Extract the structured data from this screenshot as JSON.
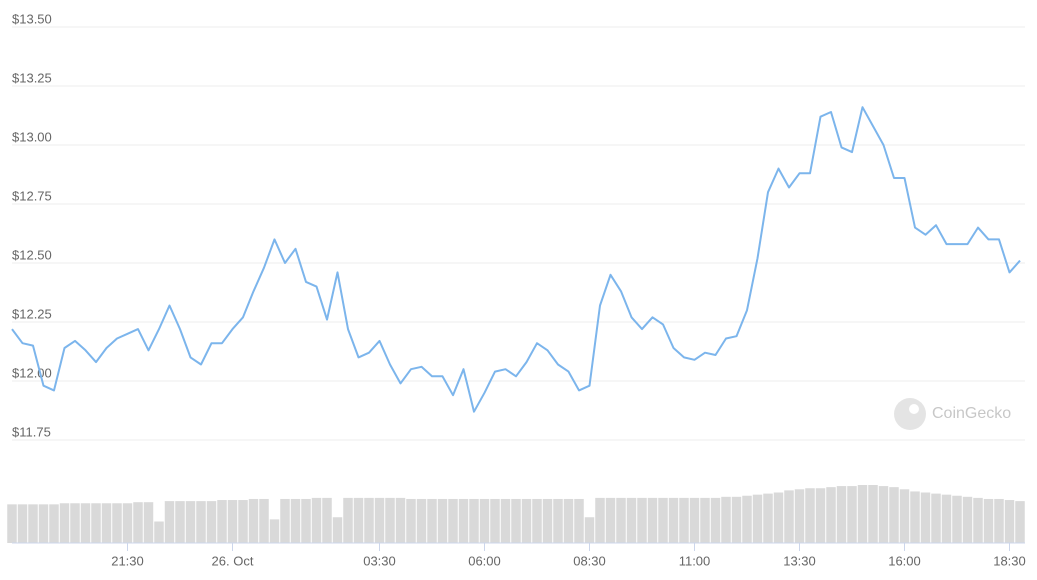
{
  "chart_data": {
    "type": "line",
    "color": "#7cb5ec",
    "volume_color": "#d9d9d9",
    "grid": true,
    "watermark": "CoinGecko",
    "x": [
      -5.25,
      -5,
      -4.75,
      -4.5,
      -4.25,
      -4,
      -3.75,
      -3.5,
      -3.25,
      -3,
      -2.75,
      -2.5,
      -2.25,
      -2,
      -1.75,
      -1.5,
      -1.25,
      -1,
      -0.75,
      -0.5,
      -0.25,
      0,
      0.25,
      0.5,
      0.75,
      1,
      1.25,
      1.5,
      1.75,
      2,
      2.25,
      2.5,
      2.75,
      3,
      3.25,
      3.5,
      3.75,
      4,
      4.25,
      4.5,
      4.75,
      5,
      5.25,
      5.5,
      5.75,
      6,
      6.25,
      6.5,
      6.75,
      7,
      7.25,
      7.5,
      7.75,
      8,
      8.25,
      8.5,
      8.75,
      9,
      9.25,
      9.5,
      9.75,
      10,
      10.25,
      10.5,
      10.75,
      11,
      11.25,
      11.5,
      11.75,
      12,
      12.25,
      12.5,
      12.75,
      13,
      13.25,
      13.5,
      13.75,
      14,
      14.25,
      14.5,
      14.75,
      15,
      15.25,
      15.5,
      15.75,
      16,
      16.25,
      16.5,
      16.75,
      17,
      17.25,
      17.5,
      17.75,
      18,
      18.25,
      18.5,
      18.75
    ],
    "values": [
      12.22,
      12.16,
      12.15,
      11.98,
      11.96,
      12.14,
      12.17,
      12.13,
      12.08,
      12.14,
      12.18,
      12.2,
      12.22,
      12.13,
      12.22,
      12.32,
      12.22,
      12.1,
      12.07,
      12.16,
      12.16,
      12.22,
      12.27,
      12.38,
      12.48,
      12.6,
      12.5,
      12.56,
      12.42,
      12.4,
      12.26,
      12.46,
      12.22,
      12.1,
      12.12,
      12.17,
      12.07,
      11.99,
      12.05,
      12.06,
      12.02,
      12.02,
      11.94,
      12.05,
      11.87,
      11.95,
      12.04,
      12.05,
      12.02,
      12.08,
      12.16,
      12.13,
      12.07,
      12.04,
      11.96,
      11.98,
      12.32,
      12.45,
      12.38,
      12.27,
      12.22,
      12.27,
      12.24,
      12.14,
      12.1,
      12.09,
      12.12,
      12.11,
      12.18,
      12.19,
      12.3,
      12.52,
      12.8,
      12.9,
      12.82,
      12.88,
      12.88,
      13.12,
      13.14,
      12.99,
      12.97,
      13.16,
      13.08,
      13.0,
      12.86,
      12.86,
      12.65,
      12.62,
      12.66,
      12.58,
      12.58,
      12.58,
      12.65,
      12.6,
      12.6,
      12.46,
      12.51
    ],
    "volume": [
      36,
      36,
      36,
      36,
      36,
      37,
      37,
      37,
      37,
      37,
      37,
      37,
      38,
      38,
      20,
      39,
      39,
      39,
      39,
      39,
      40,
      40,
      40,
      41,
      41,
      22,
      41,
      41,
      41,
      42,
      42,
      24,
      42,
      42,
      42,
      42,
      42,
      42,
      41,
      41,
      41,
      41,
      41,
      41,
      41,
      41,
      41,
      41,
      41,
      41,
      41,
      41,
      41,
      41,
      41,
      24,
      42,
      42,
      42,
      42,
      42,
      42,
      42,
      42,
      42,
      42,
      42,
      42,
      43,
      43,
      44,
      45,
      46,
      47,
      49,
      50,
      51,
      51,
      52,
      53,
      53,
      54,
      54,
      53,
      52,
      50,
      48,
      47,
      46,
      45,
      44,
      43,
      42,
      41,
      41,
      40,
      39
    ],
    "xlim": [
      -5.25,
      18.75
    ],
    "xticks": [
      {
        "value": -2.5,
        "label": "21:30"
      },
      {
        "value": 0,
        "label": "26. Oct"
      },
      {
        "value": 3.5,
        "label": "03:30"
      },
      {
        "value": 6,
        "label": "06:00"
      },
      {
        "value": 8.5,
        "label": "08:30"
      },
      {
        "value": 11,
        "label": "11:00"
      },
      {
        "value": 13.5,
        "label": "13:30"
      },
      {
        "value": 16,
        "label": "16:00"
      },
      {
        "value": 18.5,
        "label": "18:30"
      }
    ],
    "ylim": [
      11.75,
      13.5
    ],
    "yticks": [
      {
        "value": 11.75,
        "label": "$11.75"
      },
      {
        "value": 12,
        "label": "$12.00"
      },
      {
        "value": 12.25,
        "label": "$12.25"
      },
      {
        "value": 12.5,
        "label": "$12.50"
      },
      {
        "value": 12.75,
        "label": "$12.75"
      },
      {
        "value": 13,
        "label": "$13.00"
      },
      {
        "value": 13.25,
        "label": "$13.25"
      },
      {
        "value": 13.5,
        "label": "$13.50"
      }
    ]
  }
}
